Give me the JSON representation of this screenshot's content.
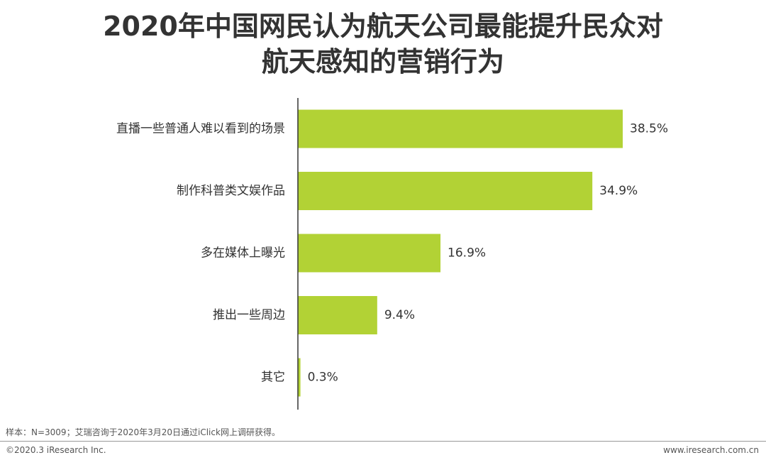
{
  "chart_data": {
    "type": "bar",
    "orientation": "horizontal",
    "title_line1": "2020年中国网民认为航天公司最能提升民众对",
    "title_line2": "航天感知的营销行为",
    "categories": [
      "直播一些普通人难以看到的场景",
      "制作科普类文娱作品",
      "多在媒体上曝光",
      "推出一些周边",
      "其它"
    ],
    "values": [
      38.5,
      34.9,
      16.9,
      9.4,
      0.3
    ],
    "value_labels": [
      "38.5%",
      "34.9%",
      "16.9%",
      "9.4%",
      "0.3%"
    ],
    "unit": "%",
    "xlim": [
      0,
      40
    ],
    "grid": false,
    "legend": "none",
    "bar_color": "#b2d235"
  },
  "footer": {
    "note": "样本：N=3009；艾瑞咨询于2020年3月20日通过iClick网上调研获得。",
    "copyright": "©2020.3 iResearch Inc.",
    "website": "www.iresearch.com.cn"
  }
}
